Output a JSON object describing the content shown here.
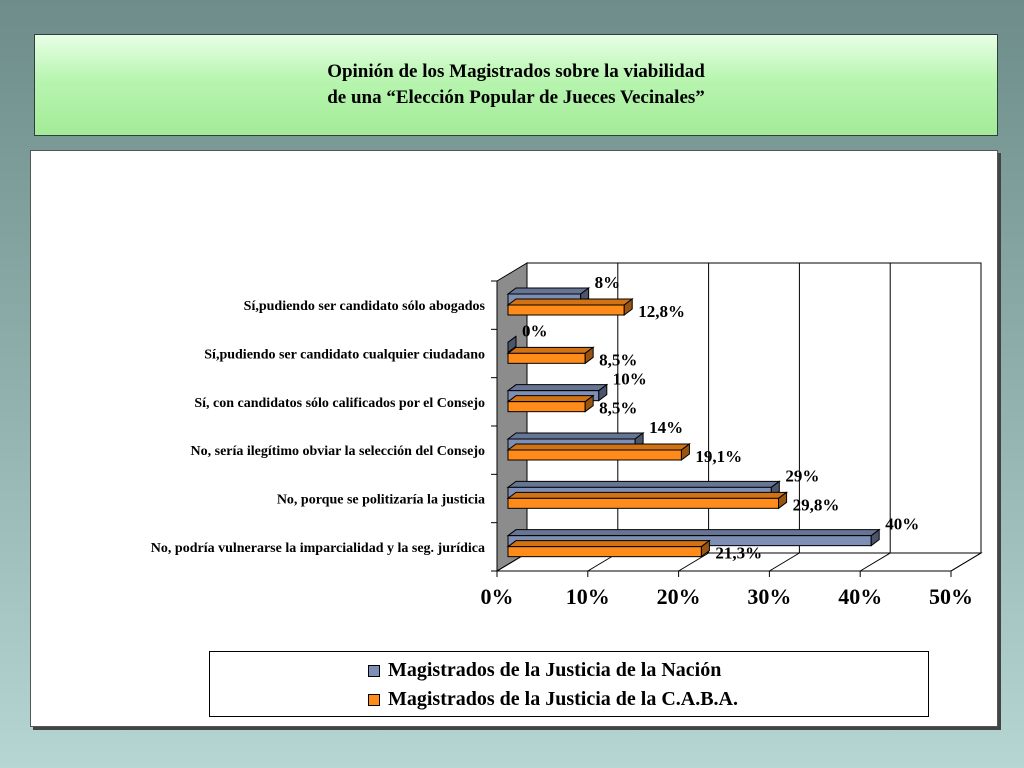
{
  "title": {
    "line1": "Opinión de los Magistrados sobre la viabilidad",
    "line2": "de una “Elección Popular de Jueces Vecinales”"
  },
  "chart_data": {
    "type": "bar",
    "orientation": "horizontal",
    "categories": [
      "Sí,pudiendo ser candidato sólo abogados",
      "Sí,pudiendo ser candidato cualquier ciudadano",
      "Sí, con candidatos sólo calificados por el Consejo",
      "No, sería ilegítimo obviar la selección del Consejo",
      "No, porque se politizaría la justicia",
      "No, podría vulnerarse la imparcialidad y la seg. jurídica"
    ],
    "series": [
      {
        "name": "Magistrados de la Justicia de la Nación",
        "color": "#7d8fb5",
        "values": [
          8,
          0,
          10,
          14,
          29,
          40
        ],
        "labels": [
          "8%",
          "0%",
          "10%",
          "14%",
          "29%",
          "40%"
        ]
      },
      {
        "name": "Magistrados de la Justicia de la C.A.B.A.",
        "color": "#ff8c1a",
        "values": [
          12.8,
          8.5,
          8.5,
          19.1,
          29.8,
          21.3
        ],
        "labels": [
          "12,8%",
          "8,5%",
          "8,5%",
          "19,1%",
          "29,8%",
          "21,3%"
        ]
      }
    ],
    "xlim": [
      0,
      50
    ],
    "x_ticks": [
      "0%",
      "10%",
      "20%",
      "30%",
      "40%",
      "50%"
    ],
    "grid": true,
    "legend_position": "bottom"
  }
}
